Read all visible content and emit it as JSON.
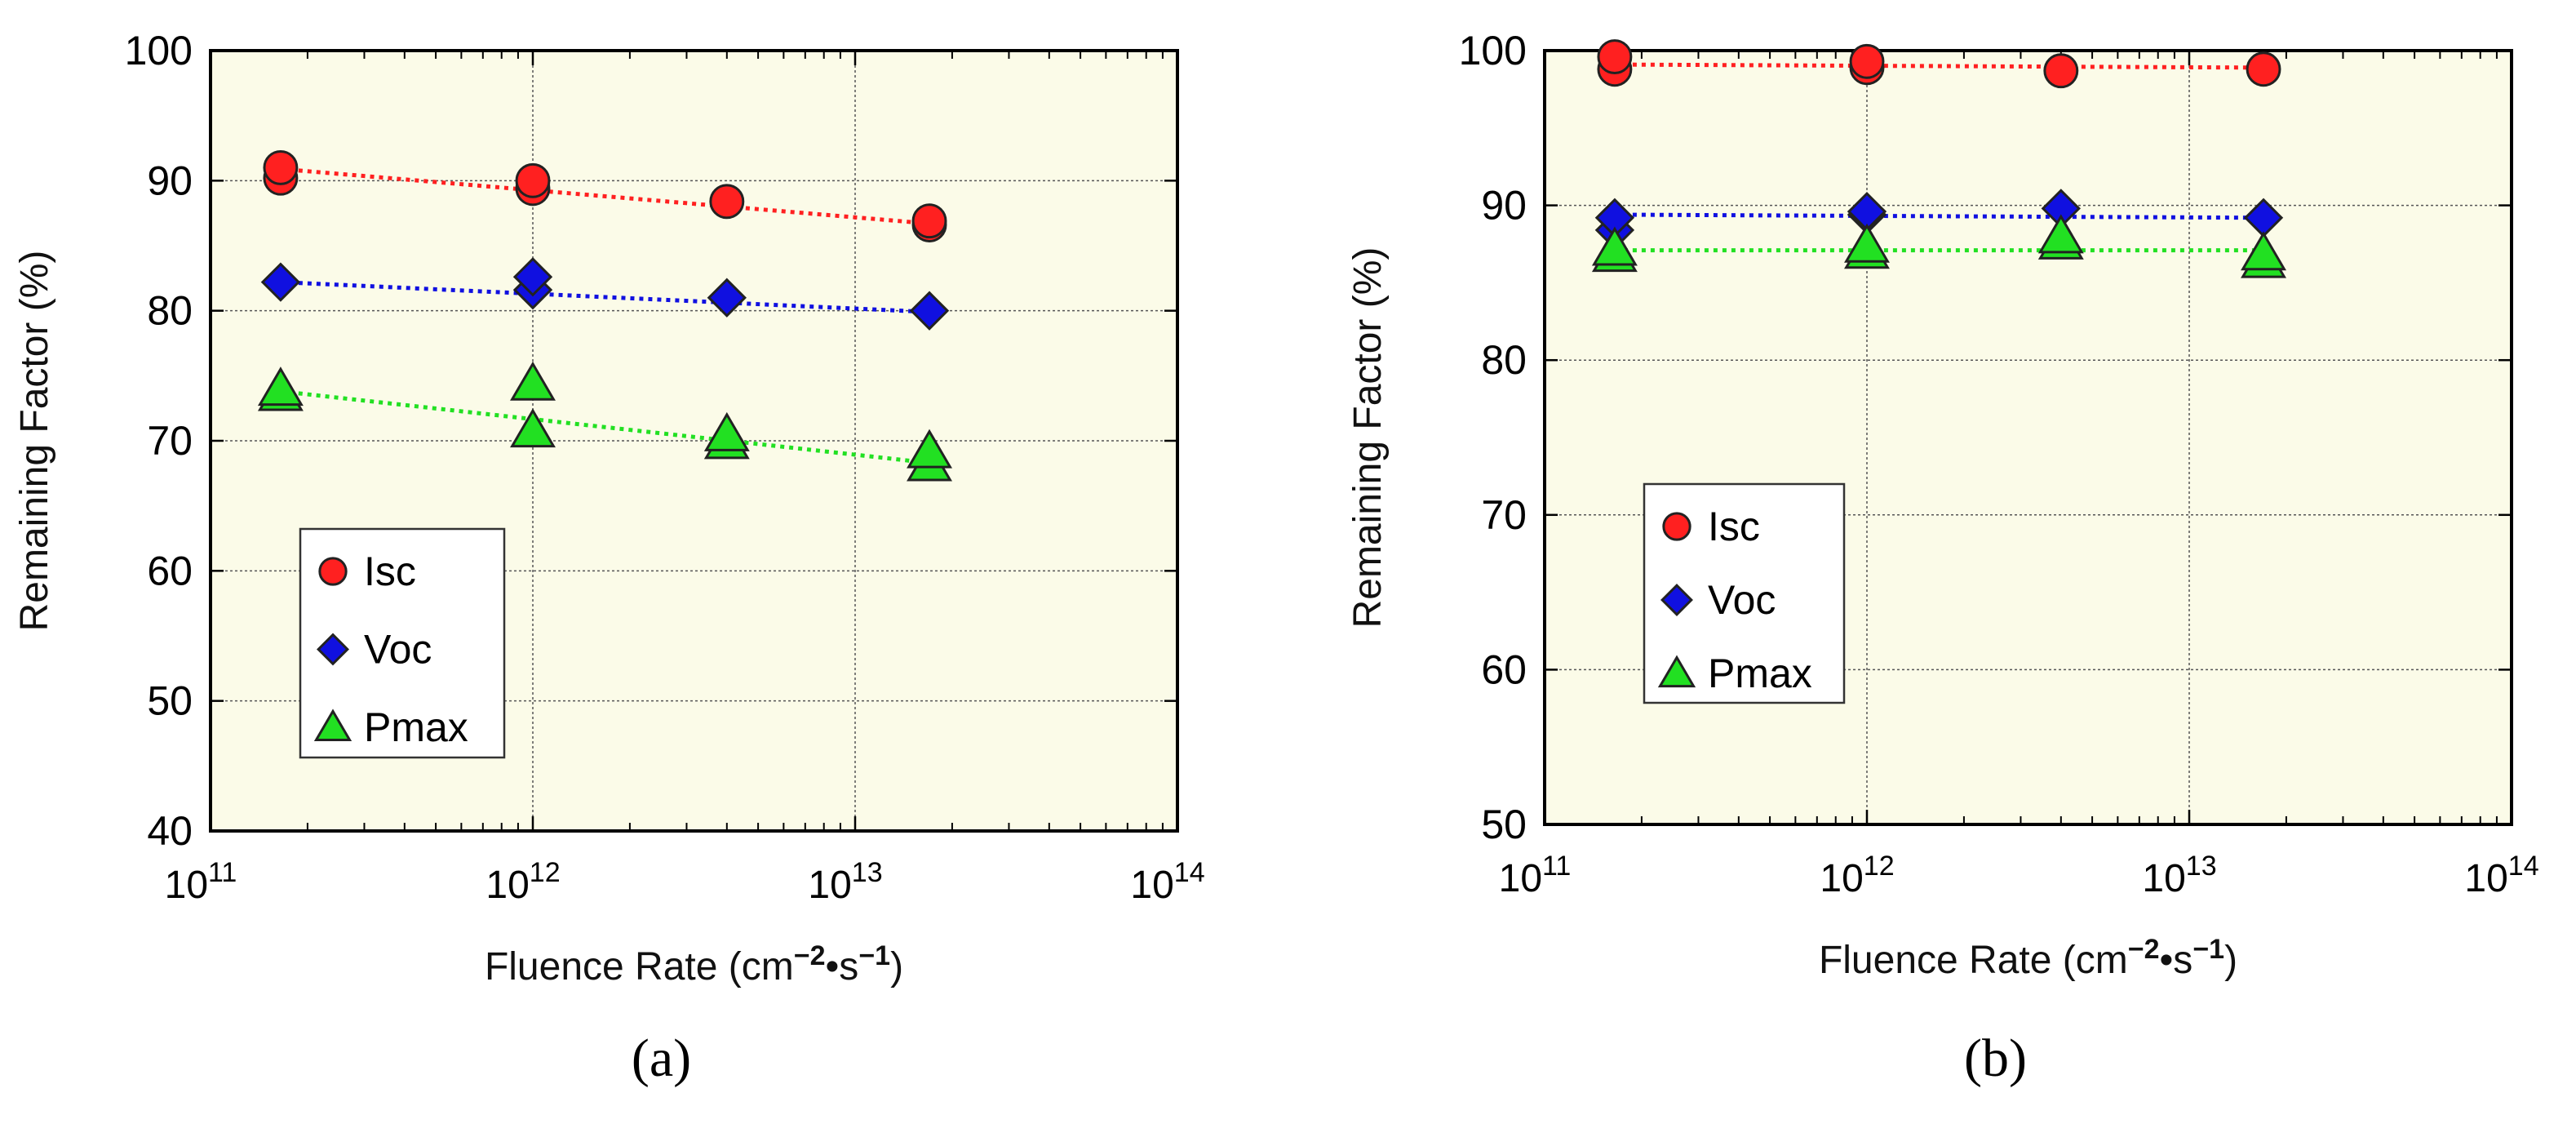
{
  "chart_data": [
    {
      "type": "scatter",
      "panel_label": "(a)",
      "xlabel_prefix": "Fluence Rate (cm",
      "xlabel_sup1": "−2",
      "xlabel_mid": "•s",
      "xlabel_sup2": "−1",
      "xlabel_suffix": ")",
      "ylabel": "Remaining Factor (%)",
      "xscale": "log",
      "xlim": [
        100000000000.0,
        100000000000000.0
      ],
      "ylim": [
        40,
        100
      ],
      "yticks": [
        40,
        50,
        60,
        70,
        80,
        90,
        100
      ],
      "xticks": [
        {
          "base": "10",
          "exp": "11",
          "value": 100000000000.0
        },
        {
          "base": "10",
          "exp": "12",
          "value": 1000000000000.0
        },
        {
          "base": "10",
          "exp": "13",
          "value": 10000000000000.0
        },
        {
          "base": "10",
          "exp": "14",
          "value": 100000000000000.0
        }
      ],
      "grid": true,
      "legend_position": "lower-left",
      "series": [
        {
          "name": "Isc",
          "marker": "circle",
          "color": "#ff2020",
          "points": [
            [
              165000000000.0,
              90.2
            ],
            [
              165000000000.0,
              91.0
            ],
            [
              1000000000000.0,
              89.4
            ],
            [
              1000000000000.0,
              90.0
            ],
            [
              4000000000000.0,
              88.4
            ],
            [
              17000000000000.0,
              86.6
            ],
            [
              17000000000000.0,
              86.9
            ]
          ],
          "trend": [
            [
              165000000000.0,
              90.9
            ],
            [
              17000000000000.0,
              86.7
            ]
          ]
        },
        {
          "name": "Voc",
          "marker": "diamond",
          "color": "#1010e0",
          "points": [
            [
              165000000000.0,
              82.2
            ],
            [
              1000000000000.0,
              81.6
            ],
            [
              1000000000000.0,
              82.6
            ],
            [
              4000000000000.0,
              81.0
            ],
            [
              17000000000000.0,
              80.0
            ]
          ],
          "trend": [
            [
              165000000000.0,
              82.2
            ],
            [
              17000000000000.0,
              79.9
            ]
          ]
        },
        {
          "name": "Pmax",
          "marker": "triangle",
          "color": "#22e022",
          "points": [
            [
              165000000000.0,
              73.6
            ],
            [
              165000000000.0,
              74.0
            ],
            [
              1000000000000.0,
              70.8
            ],
            [
              1000000000000.0,
              74.4
            ],
            [
              4000000000000.0,
              69.9
            ],
            [
              4000000000000.0,
              70.5
            ],
            [
              17000000000000.0,
              68.2
            ],
            [
              17000000000000.0,
              69.2
            ]
          ],
          "trend": [
            [
              165000000000.0,
              73.8
            ],
            [
              17000000000000.0,
              68.3
            ]
          ]
        }
      ]
    },
    {
      "type": "scatter",
      "panel_label": "(b)",
      "xlabel_prefix": "Fluence Rate (cm",
      "xlabel_sup1": "−2",
      "xlabel_mid": "•s",
      "xlabel_sup2": "−1",
      "xlabel_suffix": ")",
      "ylabel": "Remaining Factor (%)",
      "xscale": "log",
      "xlim": [
        100000000000.0,
        100000000000000.0
      ],
      "ylim": [
        50,
        100
      ],
      "yticks": [
        50,
        60,
        70,
        80,
        90,
        100
      ],
      "xticks": [
        {
          "base": "10",
          "exp": "11",
          "value": 100000000000.0
        },
        {
          "base": "10",
          "exp": "12",
          "value": 1000000000000.0
        },
        {
          "base": "10",
          "exp": "13",
          "value": 10000000000000.0
        },
        {
          "base": "10",
          "exp": "14",
          "value": 100000000000000.0
        }
      ],
      "grid": true,
      "legend_position": "center-left",
      "series": [
        {
          "name": "Isc",
          "marker": "circle",
          "color": "#ff2020",
          "points": [
            [
              165000000000.0,
              98.8
            ],
            [
              165000000000.0,
              99.6
            ],
            [
              1000000000000.0,
              98.9
            ],
            [
              1000000000000.0,
              99.3
            ],
            [
              4000000000000.0,
              98.7
            ],
            [
              17000000000000.0,
              98.8
            ]
          ],
          "trend": [
            [
              165000000000.0,
              99.1
            ],
            [
              17000000000000.0,
              98.9
            ]
          ]
        },
        {
          "name": "Voc",
          "marker": "diamond",
          "color": "#1010e0",
          "points": [
            [
              165000000000.0,
              88.4
            ],
            [
              165000000000.0,
              89.2
            ],
            [
              1000000000000.0,
              89.4
            ],
            [
              1000000000000.0,
              89.6
            ],
            [
              4000000000000.0,
              89.8
            ],
            [
              17000000000000.0,
              89.2
            ]
          ],
          "trend": [
            [
              165000000000.0,
              89.4
            ],
            [
              17000000000000.0,
              89.2
            ]
          ]
        },
        {
          "name": "Pmax",
          "marker": "triangle",
          "color": "#22e022",
          "points": [
            [
              165000000000.0,
              86.8
            ],
            [
              165000000000.0,
              87.2
            ],
            [
              1000000000000.0,
              87.0
            ],
            [
              1000000000000.0,
              87.4
            ],
            [
              4000000000000.0,
              87.6
            ],
            [
              4000000000000.0,
              88.0
            ],
            [
              17000000000000.0,
              86.4
            ],
            [
              17000000000000.0,
              86.9
            ]
          ],
          "trend": [
            [
              165000000000.0,
              87.1
            ],
            [
              17000000000000.0,
              87.1
            ]
          ]
        }
      ]
    }
  ]
}
